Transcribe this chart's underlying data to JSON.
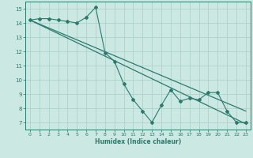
{
  "x": [
    0,
    1,
    2,
    3,
    4,
    5,
    6,
    7,
    8,
    9,
    10,
    11,
    12,
    13,
    14,
    15,
    16,
    17,
    18,
    19,
    20,
    21,
    22,
    23
  ],
  "y": [
    14.2,
    14.3,
    14.3,
    14.2,
    14.1,
    14.0,
    14.4,
    15.1,
    11.9,
    11.3,
    9.7,
    8.6,
    7.8,
    7.0,
    8.2,
    9.3,
    8.5,
    8.7,
    8.6,
    9.1,
    9.1,
    7.8,
    7.0,
    7.0
  ],
  "trend1_x": [
    0,
    23
  ],
  "trend1_y": [
    14.2,
    6.9
  ],
  "trend2_x": [
    0,
    23
  ],
  "trend2_y": [
    14.2,
    7.8
  ],
  "xlabel": "Humidex (Indice chaleur)",
  "xlim": [
    -0.5,
    23.5
  ],
  "ylim": [
    6.5,
    15.5
  ],
  "yticks": [
    7,
    8,
    9,
    10,
    11,
    12,
    13,
    14,
    15
  ],
  "xticks": [
    0,
    1,
    2,
    3,
    4,
    5,
    6,
    7,
    8,
    9,
    10,
    11,
    12,
    13,
    14,
    15,
    16,
    17,
    18,
    19,
    20,
    21,
    22,
    23
  ],
  "line_color": "#2a7a6e",
  "bg_color": "#cce8e3",
  "grid_color": "#a8cec9"
}
